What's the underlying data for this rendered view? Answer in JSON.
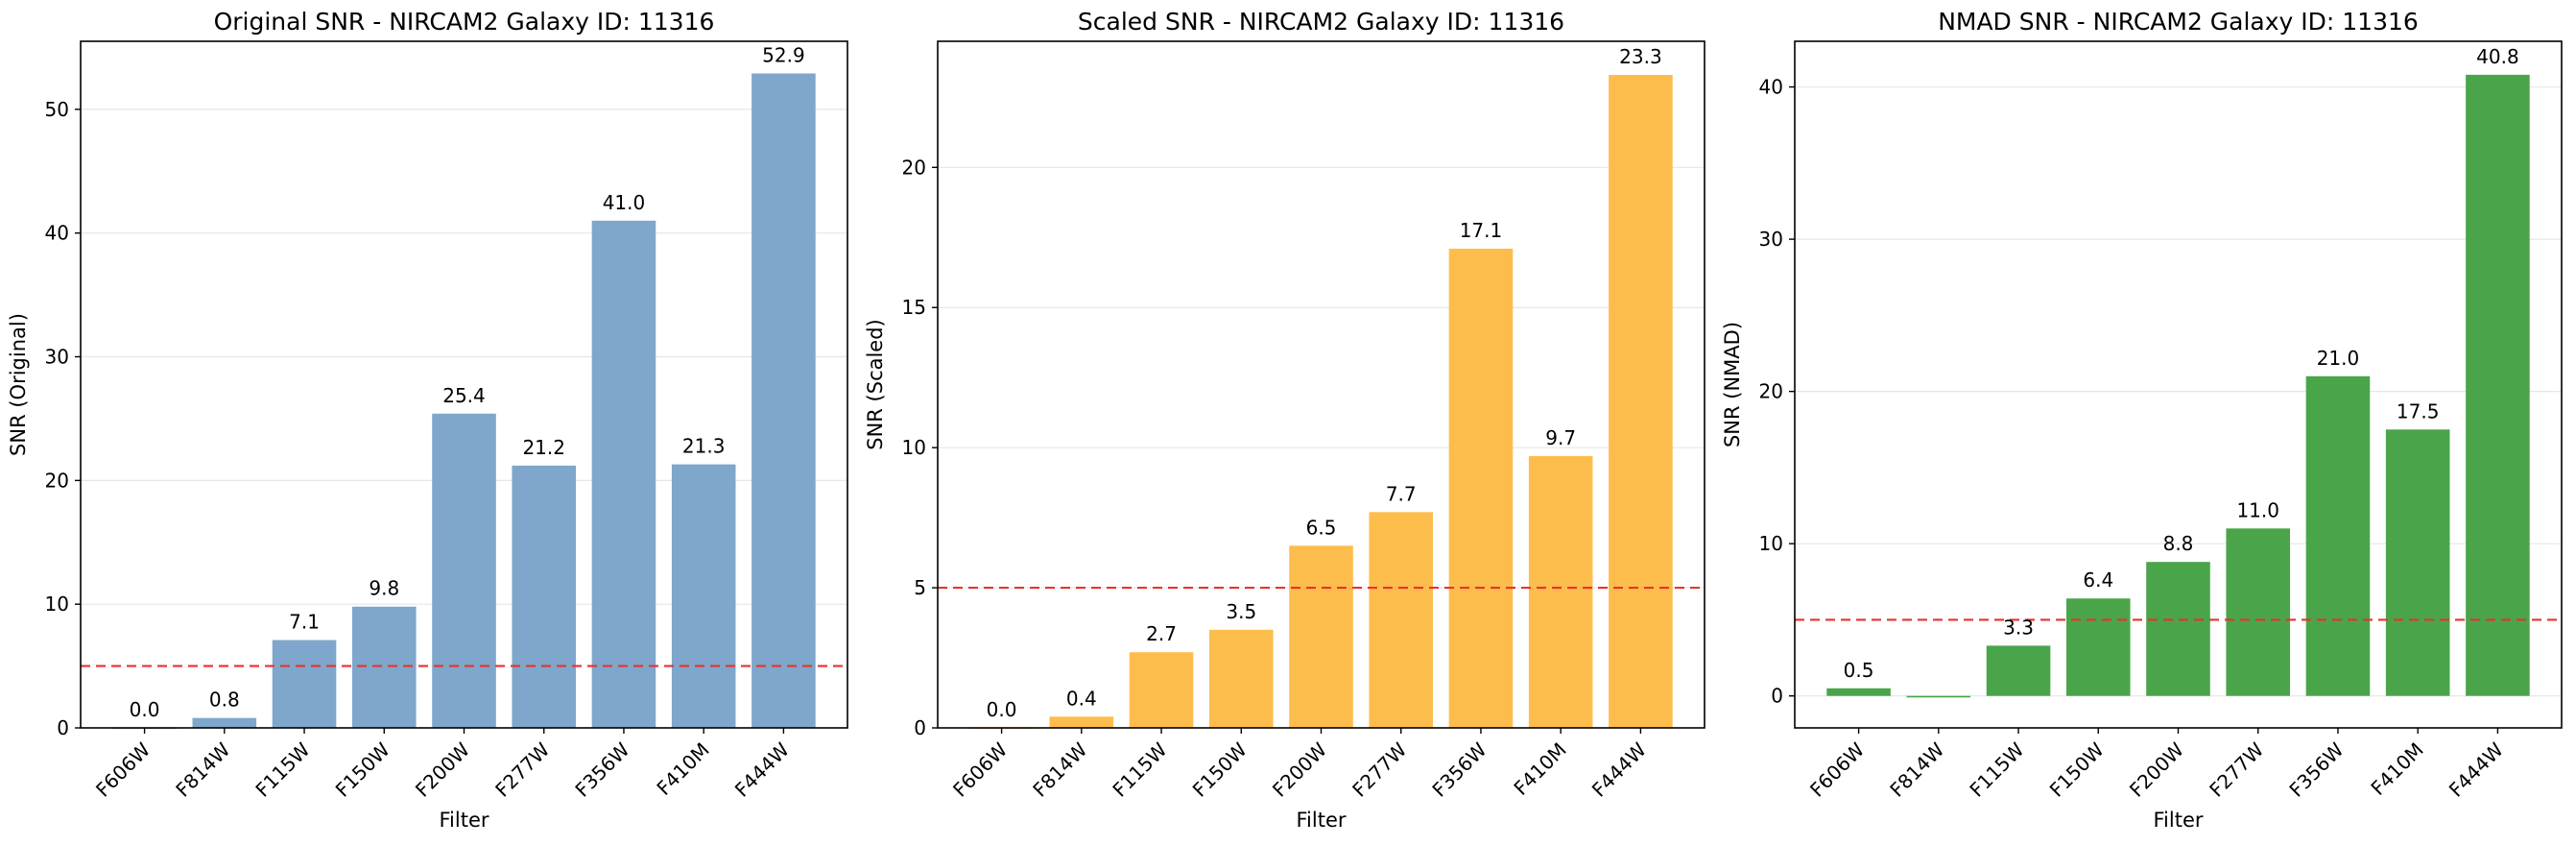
{
  "figure": {
    "reference_line": {
      "value": 5,
      "color": "#e8322f"
    },
    "label_color": "#000000"
  },
  "chart_data": [
    {
      "type": "bar",
      "title": "Original SNR - NIRCAM2 Galaxy ID: 11316",
      "xlabel": "Filter",
      "ylabel": "SNR (Original)",
      "categories": [
        "F606W",
        "F814W",
        "F115W",
        "F150W",
        "F200W",
        "F277W",
        "F356W",
        "F410M",
        "F444W"
      ],
      "values": [
        0.0,
        0.8,
        7.1,
        9.8,
        25.4,
        21.2,
        41.0,
        21.3,
        52.9
      ],
      "value_labels": [
        "0.0",
        "0.8",
        "7.1",
        "9.8",
        "25.4",
        "21.2",
        "41.0",
        "21.3",
        "52.9"
      ],
      "ylim": [
        0,
        55.5
      ],
      "yticks": [
        0,
        10,
        20,
        30,
        40,
        50
      ],
      "bar_color": "#7ea7cb",
      "grid": "y"
    },
    {
      "type": "bar",
      "title": "Scaled SNR - NIRCAM2 Galaxy ID: 11316",
      "xlabel": "Filter",
      "ylabel": "SNR (Scaled)",
      "categories": [
        "F606W",
        "F814W",
        "F115W",
        "F150W",
        "F200W",
        "F277W",
        "F356W",
        "F410M",
        "F444W"
      ],
      "values": [
        0.0,
        0.4,
        2.7,
        3.5,
        6.5,
        7.7,
        17.1,
        9.7,
        23.3
      ],
      "value_labels": [
        "0.0",
        "0.4",
        "2.7",
        "3.5",
        "6.5",
        "7.7",
        "17.1",
        "9.7",
        "23.3"
      ],
      "ylim": [
        0,
        24.5
      ],
      "yticks": [
        0,
        5,
        10,
        15,
        20
      ],
      "bar_color": "#fdbd4d",
      "grid": "y"
    },
    {
      "type": "bar",
      "title": "NMAD SNR - NIRCAM2 Galaxy ID: 11316",
      "xlabel": "Filter",
      "ylabel": "SNR (NMAD)",
      "categories": [
        "F606W",
        "F814W",
        "F115W",
        "F150W",
        "F200W",
        "F277W",
        "F356W",
        "F410M",
        "F444W"
      ],
      "values": [
        0.5,
        -0.1,
        3.3,
        6.4,
        8.8,
        11.0,
        21.0,
        17.5,
        40.8
      ],
      "value_labels": [
        "0.5",
        "",
        "3.3",
        "6.4",
        "8.8",
        "11.0",
        "21.0",
        "17.5",
        "40.8"
      ],
      "ylim": [
        -2.1,
        43.0
      ],
      "yticks": [
        0,
        10,
        20,
        30,
        40
      ],
      "bar_color": "#4aa54a",
      "grid": "y"
    }
  ]
}
